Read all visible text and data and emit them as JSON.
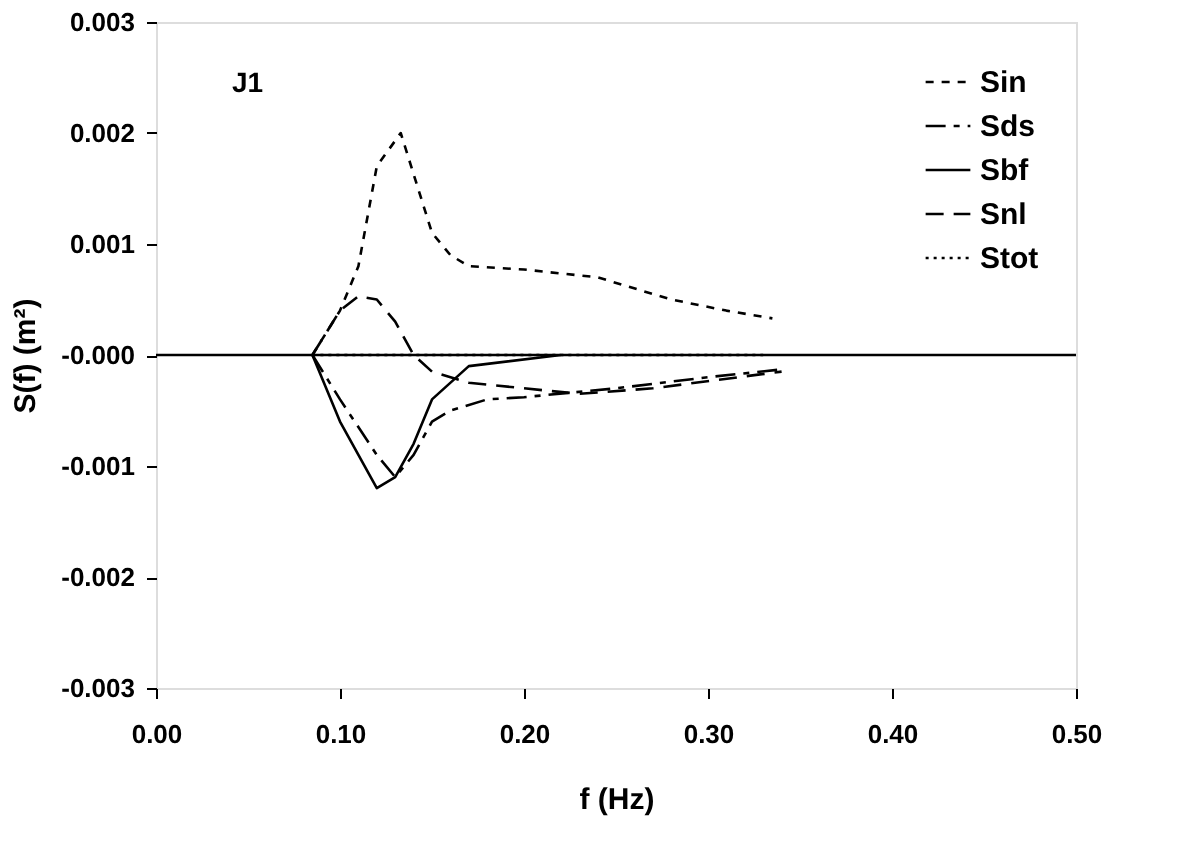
{
  "chart_data": {
    "type": "line",
    "xlabel": "f  (Hz)",
    "ylabel": "S(f)  (m²)",
    "annotations": [
      "J1"
    ],
    "xlim": [
      0,
      0.5
    ],
    "xticks": [
      {
        "value": 0,
        "label": "0.00"
      },
      {
        "value": 0.1,
        "label": "0.10"
      },
      {
        "value": 0.2,
        "label": "0.20"
      },
      {
        "value": 0.3,
        "label": "0.30"
      },
      {
        "value": 0.4,
        "label": "0.40"
      },
      {
        "value": 0.5,
        "label": "0.50"
      }
    ],
    "ylim": [
      -0.003,
      0.003
    ],
    "yticks": [
      {
        "value": -0.003,
        "label": "-0.003"
      },
      {
        "value": -0.002,
        "label": "-0.002"
      },
      {
        "value": -0.001,
        "label": "-0.001"
      },
      {
        "value": 0,
        "label": "-0.000"
      },
      {
        "value": 0.001,
        "label": "0.001"
      },
      {
        "value": 0.002,
        "label": "0.002"
      },
      {
        "value": 0.003,
        "label": "0.003"
      }
    ],
    "grid": false,
    "legend": "top right",
    "ref_lines": [
      {
        "axis": "y",
        "value": 0,
        "color": "#000000",
        "line_style": "solid"
      }
    ],
    "series": [
      {
        "name": "Sin",
        "color": "#000000",
        "line_style": "dotted",
        "x": [
          0.085,
          0.1,
          0.11,
          0.12,
          0.133,
          0.15,
          0.16,
          0.17,
          0.2,
          0.24,
          0.28,
          0.31,
          0.335
        ],
        "values": [
          0,
          0.0004,
          0.0008,
          0.0017,
          0.002,
          0.0011,
          0.0009,
          0.0008,
          0.00077,
          0.0007,
          0.0005,
          0.0004,
          0.00033
        ]
      },
      {
        "name": "Sds",
        "color": "#000000",
        "line_style": "dashdot",
        "x": [
          0.085,
          0.1,
          0.12,
          0.13,
          0.14,
          0.15,
          0.16,
          0.18,
          0.2,
          0.25,
          0.3,
          0.34
        ],
        "values": [
          0,
          -0.0004,
          -0.0009,
          -0.0011,
          -0.0009,
          -0.0006,
          -0.0005,
          -0.0004,
          -0.00038,
          -0.0003,
          -0.0002,
          -0.00013
        ]
      },
      {
        "name": "Sbf",
        "color": "#000000",
        "line_style": "solid",
        "x": [
          0.085,
          0.1,
          0.12,
          0.13,
          0.14,
          0.15,
          0.17,
          0.22
        ],
        "values": [
          0,
          -0.0006,
          -0.0012,
          -0.0011,
          -0.0008,
          -0.0004,
          -0.0001,
          0
        ]
      },
      {
        "name": "Snl",
        "color": "#000000",
        "line_style": "dashed",
        "x": [
          0.085,
          0.1,
          0.11,
          0.12,
          0.13,
          0.14,
          0.15,
          0.17,
          0.2,
          0.23,
          0.27,
          0.34
        ],
        "values": [
          0,
          0.0004,
          0.00053,
          0.0005,
          0.0003,
          0,
          -0.00015,
          -0.00025,
          -0.0003,
          -0.00035,
          -0.0003,
          -0.00015
        ]
      },
      {
        "name": "Stot",
        "color": "#000000",
        "line_style": "dotted",
        "x": [
          0.085,
          0.2,
          0.33
        ],
        "values": [
          0,
          0,
          0
        ]
      }
    ]
  }
}
